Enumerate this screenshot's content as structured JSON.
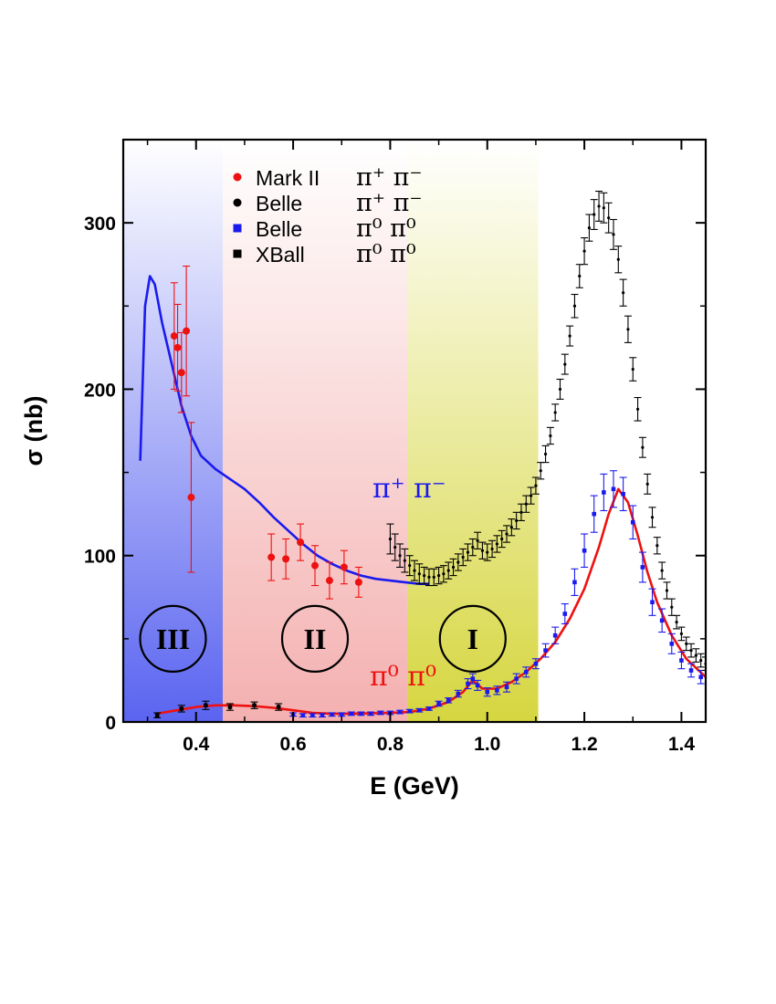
{
  "chart_data": {
    "type": "scatter",
    "xlabel": "E (GeV)",
    "ylabel": "σ (nb)",
    "xlim": [
      0.25,
      1.45
    ],
    "ylim": [
      0,
      350
    ],
    "x_ticks": [
      "0.4",
      "0.6",
      "0.8",
      "1.0",
      "1.2",
      "1.4"
    ],
    "y_ticks": [
      "0",
      "100",
      "200",
      "300"
    ],
    "regions": [
      {
        "label": "III",
        "x_range": [
          0.25,
          0.455
        ],
        "color": "#5a64f0"
      },
      {
        "label": "II",
        "x_range": [
          0.455,
          0.835
        ],
        "color": "#f4b0b0"
      },
      {
        "label": "I",
        "x_range": [
          0.835,
          1.105
        ],
        "color": "#d6d640"
      }
    ],
    "legend": [
      {
        "name": "Mark II",
        "channel": "π⁺ π⁻",
        "marker": "circle",
        "color": "#ee1111"
      },
      {
        "name": "Belle",
        "channel": "π⁺ π⁻",
        "marker": "circle",
        "color": "#000000"
      },
      {
        "name": "Belle",
        "channel": "π⁰ π⁰",
        "marker": "square",
        "color": "#1a1aee"
      },
      {
        "name": "XBall",
        "channel": "π⁰ π⁰",
        "marker": "square",
        "color": "#000000"
      }
    ],
    "curve_labels": {
      "charged": "π⁺ π⁻",
      "neutral": "π⁰ π⁰"
    },
    "curves": [
      {
        "name": "π⁺π⁻ theory",
        "color": "#1a1aee",
        "x": [
          0.285,
          0.295,
          0.305,
          0.315,
          0.33,
          0.35,
          0.37,
          0.39,
          0.41,
          0.44,
          0.47,
          0.5,
          0.53,
          0.56,
          0.59,
          0.62,
          0.65,
          0.68,
          0.71,
          0.74,
          0.77,
          0.8,
          0.83,
          0.86,
          0.88
        ],
        "y": [
          157,
          250,
          268,
          263,
          240,
          215,
          190,
          172,
          160,
          152,
          146,
          140,
          132,
          123,
          115,
          107,
          100,
          95,
          91,
          88,
          86,
          85,
          84,
          83,
          83
        ]
      },
      {
        "name": "π⁰π⁰ theory",
        "color": "#ee1111",
        "x": [
          0.32,
          0.36,
          0.4,
          0.44,
          0.48,
          0.52,
          0.56,
          0.6,
          0.64,
          0.68,
          0.72,
          0.76,
          0.8,
          0.84,
          0.88,
          0.92,
          0.95,
          0.97,
          0.99,
          1.02,
          1.05,
          1.08,
          1.11,
          1.14,
          1.17,
          1.2,
          1.23,
          1.25,
          1.27,
          1.29,
          1.31,
          1.33,
          1.35,
          1.38,
          1.41,
          1.45
        ],
        "y": [
          5,
          7,
          9,
          10,
          10,
          9.5,
          8.5,
          7,
          5.5,
          5,
          5,
          5.2,
          5.5,
          6,
          8,
          12,
          18,
          25,
          20,
          20,
          24,
          30,
          38,
          48,
          62,
          80,
          105,
          125,
          140,
          132,
          112,
          90,
          72,
          52,
          38,
          27
        ]
      }
    ],
    "series": [
      {
        "name": "Mark II π⁺π⁻",
        "marker": "circle",
        "color": "#ee1111",
        "x": [
          0.355,
          0.362,
          0.37,
          0.38,
          0.39,
          0.555,
          0.585,
          0.615,
          0.645,
          0.675,
          0.705,
          0.735
        ],
        "y": [
          232,
          225,
          210,
          235,
          135,
          99,
          98,
          108,
          94,
          85,
          93,
          84
        ],
        "err": [
          32,
          26,
          24,
          39,
          45,
          14,
          12,
          11,
          12,
          11,
          10,
          9
        ]
      },
      {
        "name": "XBall π⁰π⁰",
        "marker": "square",
        "color": "#000000",
        "x": [
          0.32,
          0.37,
          0.42,
          0.47,
          0.52,
          0.57
        ],
        "y": [
          4,
          8,
          10,
          9,
          10,
          9
        ],
        "err": [
          1.5,
          2,
          2.5,
          2,
          2,
          2
        ]
      },
      {
        "name": "Belle π⁰π⁰",
        "marker": "square",
        "color": "#1a1aee",
        "x": [
          0.6,
          0.62,
          0.64,
          0.66,
          0.68,
          0.7,
          0.72,
          0.74,
          0.76,
          0.78,
          0.8,
          0.82,
          0.84,
          0.86,
          0.88,
          0.9,
          0.92,
          0.94,
          0.96,
          0.97,
          0.98,
          1.0,
          1.02,
          1.04,
          1.06,
          1.08,
          1.1,
          1.12,
          1.14,
          1.16,
          1.18,
          1.2,
          1.22,
          1.24,
          1.26,
          1.28,
          1.3,
          1.32,
          1.34,
          1.36,
          1.38,
          1.4,
          1.42,
          1.44
        ],
        "y": [
          4.5,
          4,
          4,
          4,
          4.5,
          4.5,
          5,
          5,
          5,
          5.5,
          5.5,
          6,
          6.5,
          7,
          8,
          11,
          13,
          17,
          23,
          26,
          22,
          18,
          19,
          21,
          26,
          30,
          35,
          43,
          52,
          65,
          84,
          103,
          125,
          138,
          140,
          137,
          120,
          93,
          72,
          61,
          47,
          37,
          31,
          27
        ],
        "err": [
          1,
          1,
          1,
          1,
          1,
          1,
          1,
          1,
          1,
          1,
          1,
          1,
          1,
          1,
          1,
          1.5,
          1.5,
          2,
          3,
          3,
          3,
          2.5,
          2.5,
          3,
          3,
          3,
          3,
          4,
          5,
          6,
          8,
          10,
          11,
          11,
          11,
          10,
          10,
          9,
          8,
          7,
          6,
          5,
          4,
          4
        ]
      },
      {
        "name": "Belle π⁺π⁻",
        "marker": "circle",
        "color": "#000000",
        "x": [
          0.8,
          0.81,
          0.82,
          0.83,
          0.84,
          0.85,
          0.86,
          0.87,
          0.88,
          0.89,
          0.9,
          0.91,
          0.92,
          0.93,
          0.94,
          0.95,
          0.96,
          0.97,
          0.98,
          0.99,
          1.0,
          1.01,
          1.02,
          1.03,
          1.04,
          1.05,
          1.06,
          1.07,
          1.08,
          1.09,
          1.1,
          1.11,
          1.12,
          1.13,
          1.14,
          1.15,
          1.16,
          1.17,
          1.18,
          1.19,
          1.2,
          1.21,
          1.22,
          1.23,
          1.24,
          1.25,
          1.26,
          1.27,
          1.28,
          1.29,
          1.3,
          1.31,
          1.32,
          1.33,
          1.34,
          1.35,
          1.36,
          1.37,
          1.38,
          1.39,
          1.4,
          1.41,
          1.42,
          1.43,
          1.44,
          1.45
        ],
        "y": [
          110,
          105,
          100,
          97,
          94,
          91,
          89,
          88,
          87,
          87,
          88,
          89,
          91,
          93,
          96,
          99,
          102,
          105,
          109,
          103,
          102,
          104,
          107,
          110,
          113,
          117,
          121,
          126,
          131,
          136,
          142,
          151,
          161,
          172,
          186,
          200,
          215,
          232,
          250,
          268,
          283,
          297,
          305,
          310,
          309,
          303,
          293,
          278,
          258,
          236,
          212,
          188,
          165,
          143,
          123,
          106,
          91,
          79,
          69,
          60,
          53,
          47,
          43,
          40,
          37,
          35
        ],
        "err": [
          9,
          8,
          7,
          7,
          6,
          6,
          6,
          5,
          5,
          5,
          5,
          5,
          5,
          5,
          5,
          5,
          5,
          5,
          5,
          5,
          5,
          5,
          5,
          5,
          5,
          5,
          5,
          5,
          5,
          5,
          5,
          5,
          5,
          5,
          5,
          6,
          6,
          6,
          7,
          7,
          8,
          8,
          9,
          9,
          9,
          9,
          9,
          8,
          8,
          8,
          7,
          7,
          6,
          6,
          6,
          5,
          5,
          5,
          5,
          4,
          4,
          4,
          4,
          4,
          4,
          4
        ]
      }
    ]
  }
}
